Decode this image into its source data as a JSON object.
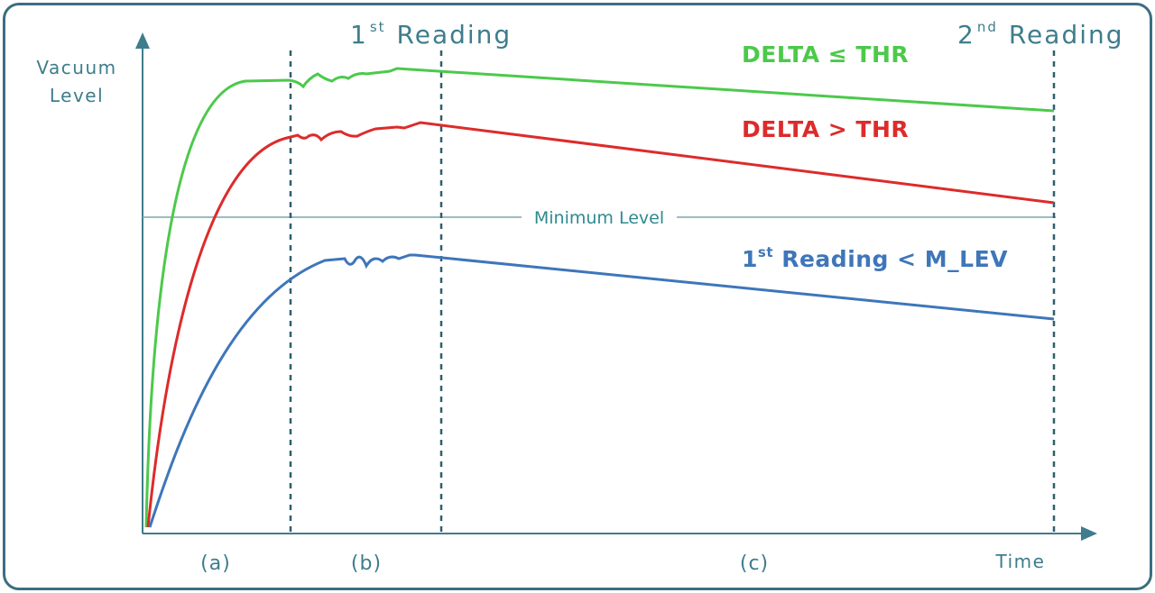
{
  "axes": {
    "y_label_line1": "Vacuum",
    "y_label_line2": "Level",
    "x_label": "Time"
  },
  "markers": {
    "first_reading": {
      "number": "1",
      "suffix": "st",
      "word": "Reading"
    },
    "second_reading": {
      "number": "2",
      "suffix": "nd",
      "word": "Reading"
    }
  },
  "phases": [
    "(a)",
    "(b)",
    "(c)"
  ],
  "threshold_label": "Minimum Level",
  "curves": {
    "green": {
      "label": "DELTA ≤ THR",
      "color": "#4cc94b"
    },
    "red": {
      "label": "DELTA > THR",
      "color": "#dd2b2b"
    },
    "blue": {
      "prefix": "1",
      "suffix": "st",
      "rest": " Reading < M_LEV",
      "color": "#3e76b9"
    }
  },
  "colors": {
    "axis": "#3e7d8c",
    "frame": "#3b6e7f",
    "dashed": "#2f5f6e",
    "threshold_line": "#7aa6ad"
  }
}
